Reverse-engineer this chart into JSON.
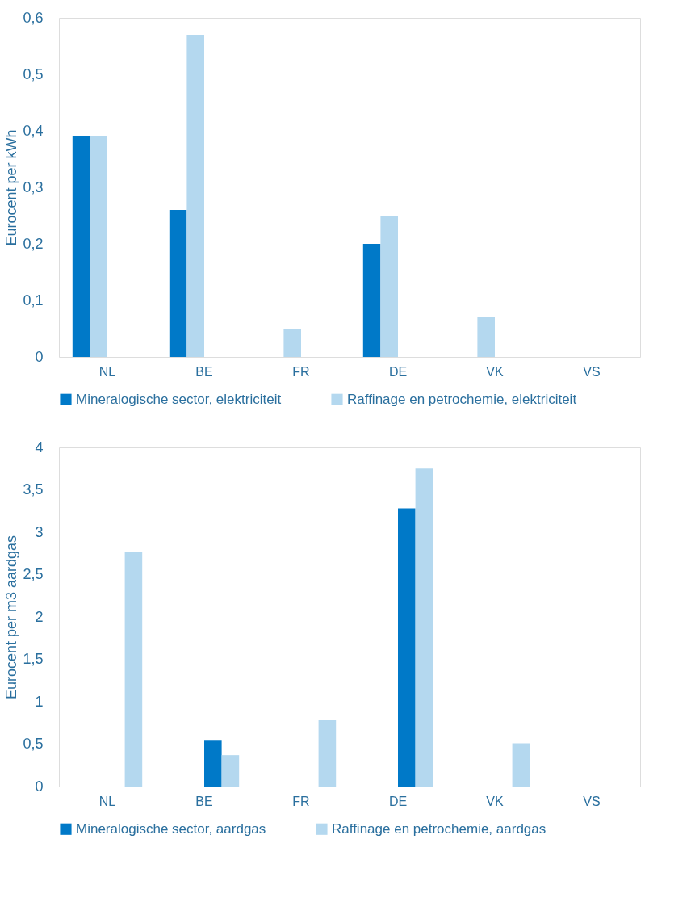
{
  "chart_data": [
    {
      "type": "bar",
      "ylabel": "Eurocent per kWh",
      "categories": [
        "NL",
        "BE",
        "FR",
        "DE",
        "VK",
        "VS"
      ],
      "series": [
        {
          "name": "Mineralogische sector, elektriciteit",
          "color": "#0079c8",
          "values": [
            0.39,
            0.26,
            null,
            0.2,
            null,
            null
          ]
        },
        {
          "name": "Raffinage en petrochemie, elektriciteit",
          "color": "#b4d8ef",
          "values": [
            0.39,
            0.57,
            0.05,
            0.25,
            0.07,
            null
          ]
        }
      ],
      "ylim": [
        0,
        0.6
      ],
      "yticks": [
        0,
        {
          "value": 0.1,
          "label": "0,1"
        },
        {
          "value": 0.2,
          "label": "0,2"
        },
        {
          "value": 0.3,
          "label": "0,3"
        },
        {
          "value": 0.4,
          "label": "0,4"
        },
        {
          "value": 0.5,
          "label": "0,5"
        },
        {
          "value": 0.6,
          "label": "0,6"
        }
      ],
      "grid": false,
      "legend": "bottom"
    },
    {
      "type": "bar",
      "ylabel": "Eurocent per m3 aardgas",
      "categories": [
        "NL",
        "BE",
        "FR",
        "DE",
        "VK",
        "VS"
      ],
      "series": [
        {
          "name": "Mineralogische sector, aardgas",
          "color": "#0079c8",
          "values": [
            null,
            0.54,
            null,
            3.28,
            null,
            null
          ]
        },
        {
          "name": "Raffinage en petrochemie, aardgas",
          "color": "#b4d8ef",
          "values": [
            2.77,
            0.37,
            0.78,
            3.75,
            0.51,
            null
          ]
        }
      ],
      "ylim": [
        0,
        4
      ],
      "yticks": [
        0,
        {
          "value": 0.5,
          "label": "0,5"
        },
        1,
        {
          "value": 1.5,
          "label": "1,5"
        },
        2,
        {
          "value": 2.5,
          "label": "2,5"
        },
        3,
        {
          "value": 3.5,
          "label": "3,5"
        },
        4
      ],
      "grid": false,
      "legend": "bottom"
    }
  ]
}
